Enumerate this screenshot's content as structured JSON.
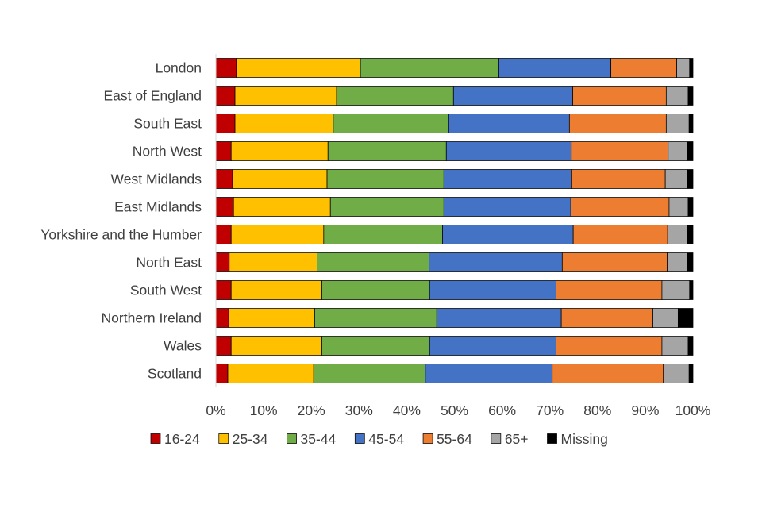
{
  "chart_data": {
    "type": "bar",
    "orientation": "horizontal",
    "stacked": "percent",
    "title": "",
    "xlabel": "",
    "ylabel": "",
    "xlim": [
      0,
      100
    ],
    "x_ticks": [
      "0%",
      "10%",
      "20%",
      "30%",
      "40%",
      "50%",
      "60%",
      "70%",
      "80%",
      "90%",
      "100%"
    ],
    "grid": false,
    "legend_position": "bottom",
    "categories": [
      "London",
      "East of England",
      "South East",
      "North West",
      "West Midlands",
      "East Midlands",
      "Yorkshire and the Humber",
      "North East",
      "South West",
      "Northern Ireland",
      "Wales",
      "Scotland"
    ],
    "series": [
      {
        "name": "16-24",
        "color": "#c00000",
        "values": [
          4.3,
          4.0,
          4.0,
          3.2,
          3.5,
          3.7,
          3.2,
          2.8,
          3.2,
          2.7,
          3.2,
          2.5
        ]
      },
      {
        "name": "25-34",
        "color": "#ffc000",
        "values": [
          26.0,
          21.3,
          20.6,
          20.3,
          19.8,
          20.3,
          19.4,
          18.4,
          19.0,
          18.0,
          19.0,
          18.0
        ]
      },
      {
        "name": "35-44",
        "color": "#70ad47",
        "values": [
          29.0,
          24.5,
          24.2,
          24.8,
          24.5,
          23.8,
          24.9,
          23.5,
          22.6,
          25.6,
          22.6,
          23.4
        ]
      },
      {
        "name": "45-54",
        "color": "#4472c4",
        "values": [
          23.5,
          25.0,
          25.3,
          26.2,
          26.8,
          26.6,
          27.4,
          27.9,
          26.5,
          26.1,
          26.5,
          26.6
        ]
      },
      {
        "name": "55-64",
        "color": "#ed7d31",
        "values": [
          13.8,
          19.6,
          20.3,
          20.3,
          19.6,
          20.6,
          19.8,
          22.0,
          22.2,
          19.2,
          22.2,
          23.3
        ]
      },
      {
        "name": "65+",
        "color": "#a5a5a5",
        "values": [
          2.7,
          4.6,
          4.8,
          4.0,
          4.6,
          4.0,
          4.1,
          4.2,
          5.8,
          5.3,
          5.5,
          5.4
        ]
      },
      {
        "name": "Missing",
        "color": "#000000",
        "values": [
          0.7,
          1.0,
          0.8,
          1.2,
          1.2,
          1.0,
          1.2,
          1.2,
          0.7,
          3.1,
          1.0,
          0.8
        ]
      }
    ]
  }
}
